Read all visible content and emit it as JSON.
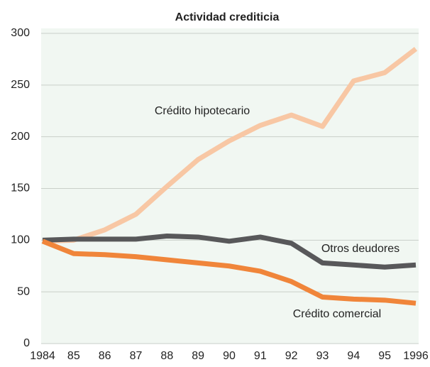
{
  "chart_data": {
    "type": "line",
    "title": "Actividad crediticia",
    "categories": [
      "1984",
      "85",
      "86",
      "87",
      "88",
      "89",
      "90",
      "91",
      "92",
      "93",
      "94",
      "95",
      "1996"
    ],
    "series": [
      {
        "name": "Crédito hipotecario",
        "color": "#f8c7a4",
        "values": [
          99,
          100,
          110,
          125,
          152,
          178,
          196,
          211,
          221,
          210,
          254,
          262,
          285
        ]
      },
      {
        "name": "Otros deudores",
        "color": "#58585a",
        "values": [
          100,
          101,
          101,
          101,
          104,
          103,
          99,
          103,
          97,
          78,
          76,
          74,
          76
        ]
      },
      {
        "name": "Crédito comercial",
        "color": "#f0853a",
        "values": [
          99,
          87,
          86,
          84,
          81,
          78,
          75,
          70,
          60,
          45,
          43,
          42,
          39
        ]
      }
    ],
    "ylim": [
      0,
      300
    ],
    "yticks": [
      0,
      50,
      100,
      150,
      200,
      250,
      300
    ],
    "grid": true
  }
}
